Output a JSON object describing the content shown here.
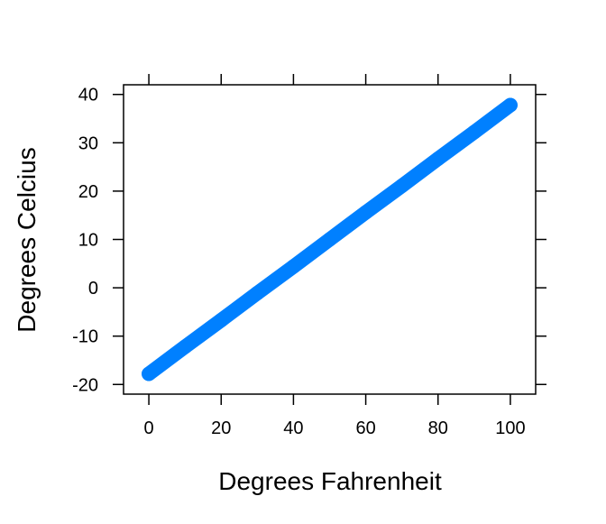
{
  "chart_data": {
    "type": "line",
    "title": "",
    "xlabel": "Degrees Fahrenheit",
    "ylabel": "Degrees Celcius",
    "xlim": [
      -7,
      107
    ],
    "ylim": [
      -22,
      42
    ],
    "x_ticks": [
      0,
      20,
      40,
      60,
      80,
      100
    ],
    "y_ticks": [
      -20,
      -10,
      0,
      10,
      20,
      30,
      40
    ],
    "x_tick_labels": [
      "0",
      "20",
      "40",
      "60",
      "80",
      "100"
    ],
    "y_tick_labels": [
      "-20",
      "-10",
      "0",
      "10",
      "20",
      "30",
      "40"
    ],
    "grid": false,
    "series": [
      {
        "color": "#0080ff",
        "x": [
          0,
          10,
          20,
          30,
          40,
          50,
          60,
          70,
          80,
          90,
          100
        ],
        "y": [
          -17.8,
          -12.2,
          -6.7,
          -1.1,
          4.4,
          10.0,
          15.6,
          21.1,
          26.7,
          32.2,
          37.8
        ]
      }
    ]
  }
}
